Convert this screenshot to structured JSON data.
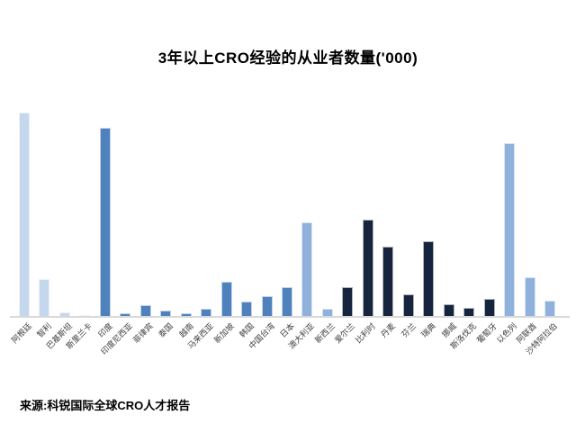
{
  "title": "3年以上CRO经验的从业者数量('000)",
  "source": "来源:科锐国际全球CRO人才报告",
  "chart_data": {
    "type": "bar",
    "title": "3年以上CRO经验的从业者数量('000)",
    "xlabel": "",
    "ylabel": "",
    "ylim": [
      0,
      24
    ],
    "y_axis_visible": false,
    "grid": false,
    "legend": false,
    "x_label_rotation_deg": -45,
    "axis_line_color": "#d9d9d9",
    "categories": [
      "阿根廷",
      "智利",
      "巴基斯坦",
      "斯里兰卡",
      "印度",
      "印度尼西亚",
      "菲律宾",
      "泰国",
      "越南",
      "马来西亚",
      "新加坡",
      "韩国",
      "中国台湾",
      "日本",
      "澳大利亚",
      "新西兰",
      "爱尔兰",
      "比利时",
      "丹麦",
      "芬兰",
      "瑞典",
      "挪威",
      "斯洛伐克",
      "葡萄牙",
      "以色列",
      "阿联酋",
      "沙特阿拉伯"
    ],
    "values": [
      22.6,
      4.1,
      0.4,
      0.1,
      20.9,
      0.3,
      1.2,
      0.6,
      0.3,
      0.8,
      3.8,
      1.6,
      2.2,
      3.2,
      10.4,
      0.8,
      3.2,
      10.7,
      7.7,
      2.4,
      8.3,
      1.3,
      0.9,
      1.9,
      19.2,
      4.3,
      1.7
    ],
    "bar_color_groups": [
      "light",
      "light",
      "light",
      "light",
      "medium",
      "medium",
      "medium",
      "medium",
      "medium",
      "medium",
      "medium",
      "medium",
      "medium",
      "medium",
      "steel",
      "steel",
      "navy",
      "navy",
      "navy",
      "navy",
      "navy",
      "navy",
      "navy",
      "navy",
      "steel",
      "steel",
      "steel"
    ],
    "palette": {
      "light": "#C5D7ED",
      "medium": "#4F81BD",
      "steel": "#8FB1DC",
      "navy": "#17243E"
    }
  }
}
